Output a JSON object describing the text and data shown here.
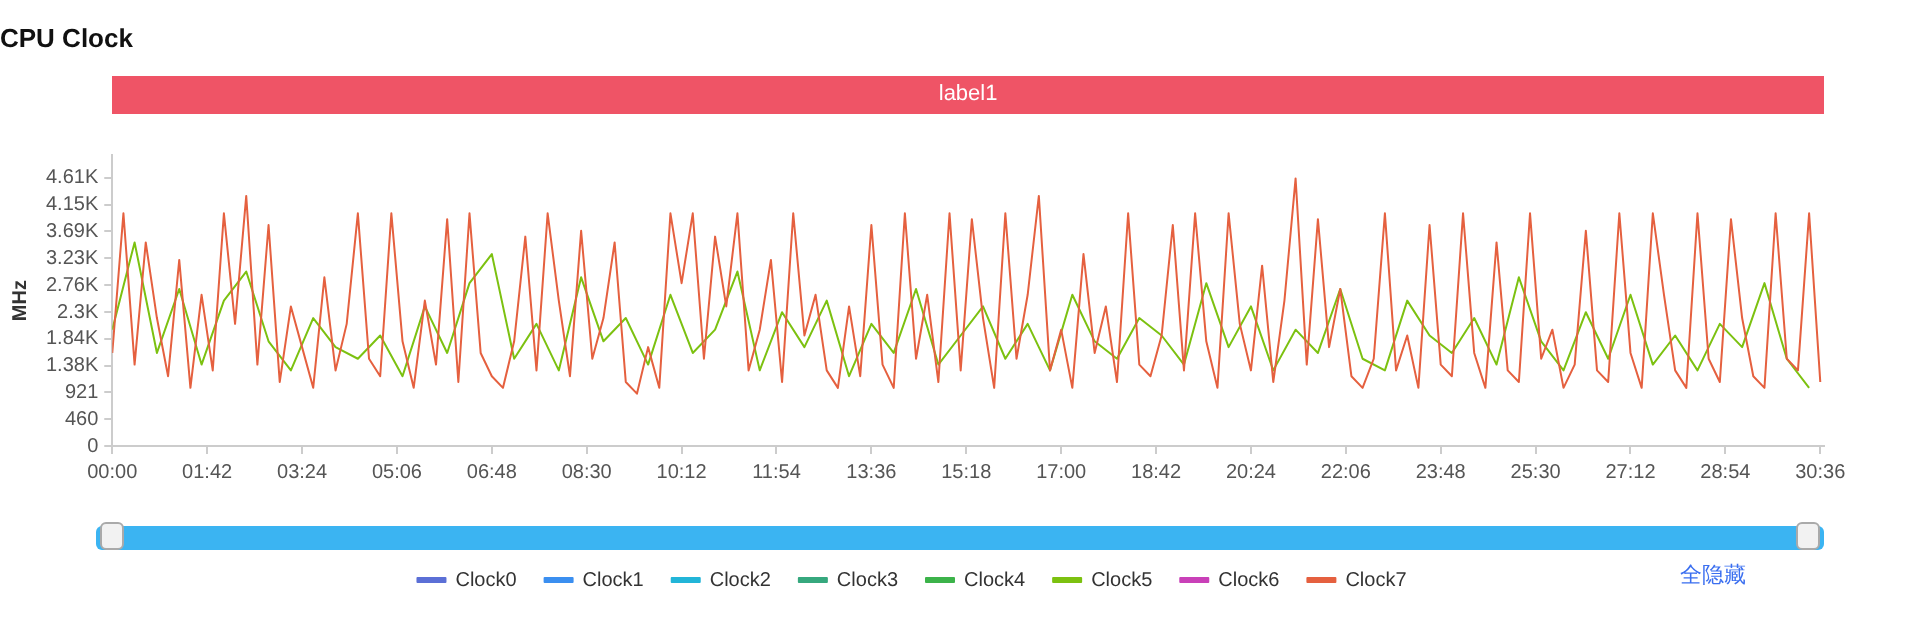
{
  "chart_data": {
    "type": "line",
    "title": "CPU Clock",
    "ylabel": "MHz",
    "legend": "bottom",
    "grid": false,
    "marker": "none",
    "line_style": "solid",
    "xlim": [
      0,
      1840
    ],
    "xticks": [
      {
        "value": 0,
        "label": "00:00"
      },
      {
        "value": 102,
        "label": "01:42"
      },
      {
        "value": 204,
        "label": "03:24"
      },
      {
        "value": 306,
        "label": "05:06"
      },
      {
        "value": 408,
        "label": "06:48"
      },
      {
        "value": 510,
        "label": "08:30"
      },
      {
        "value": 612,
        "label": "10:12"
      },
      {
        "value": 714,
        "label": "11:54"
      },
      {
        "value": 816,
        "label": "13:36"
      },
      {
        "value": 918,
        "label": "15:18"
      },
      {
        "value": 1020,
        "label": "17:00"
      },
      {
        "value": 1122,
        "label": "18:42"
      },
      {
        "value": 1224,
        "label": "20:24"
      },
      {
        "value": 1326,
        "label": "22:06"
      },
      {
        "value": 1428,
        "label": "23:48"
      },
      {
        "value": 1530,
        "label": "25:30"
      },
      {
        "value": 1632,
        "label": "27:12"
      },
      {
        "value": 1734,
        "label": "28:54"
      },
      {
        "value": 1836,
        "label": "30:36"
      }
    ],
    "ylim": [
      0,
      5000
    ],
    "yticks": [
      0,
      460,
      921,
      {
        "value": 1380,
        "label": "1.38K"
      },
      {
        "value": 1840,
        "label": "1.84K"
      },
      {
        "value": 2300,
        "label": "2.3K"
      },
      {
        "value": 2760,
        "label": "2.76K"
      },
      {
        "value": 3230,
        "label": "3.23K"
      },
      {
        "value": 3690,
        "label": "3.69K"
      },
      {
        "value": 4150,
        "label": "4.15K"
      },
      {
        "value": 4610,
        "label": "4.61K"
      }
    ],
    "annotations": [
      "label1",
      "全隐藏"
    ],
    "series": [
      {
        "name": "Clock0",
        "color": "#5b6fd6",
        "values": [
          null
        ]
      },
      {
        "name": "Clock1",
        "color": "#3b8ff0",
        "values": [
          null
        ]
      },
      {
        "name": "Clock2",
        "color": "#22b5d8",
        "values": [
          null
        ]
      },
      {
        "name": "Clock3",
        "color": "#36a87e",
        "values": [
          null
        ]
      },
      {
        "name": "Clock4",
        "color": "#3cb34a",
        "values": [
          null
        ]
      },
      {
        "name": "Clock5",
        "color": "#7cc110",
        "x": [
          0,
          24,
          48,
          72,
          96,
          120,
          144,
          168,
          192,
          216,
          240,
          264,
          288,
          312,
          336,
          360,
          384,
          408,
          432,
          456,
          480,
          504,
          528,
          552,
          576,
          600,
          624,
          648,
          672,
          696,
          720,
          744,
          768,
          792,
          816,
          840,
          864,
          888,
          912,
          936,
          960,
          984,
          1008,
          1032,
          1056,
          1080,
          1104,
          1128,
          1152,
          1176,
          1200,
          1224,
          1248,
          1272,
          1296,
          1320,
          1344,
          1368,
          1392,
          1416,
          1440,
          1464,
          1488,
          1512,
          1536,
          1560,
          1584,
          1608,
          1632,
          1656,
          1680,
          1704,
          1728,
          1752,
          1776,
          1800,
          1824
        ],
        "values": [
          2000,
          3500,
          1600,
          2700,
          1400,
          2500,
          3000,
          1800,
          1300,
          2200,
          1700,
          1500,
          1900,
          1200,
          2400,
          1600,
          2800,
          3300,
          1500,
          2100,
          1300,
          2900,
          1800,
          2200,
          1400,
          2600,
          1600,
          2000,
          3000,
          1300,
          2300,
          1700,
          2500,
          1200,
          2100,
          1600,
          2700,
          1400,
          1900,
          2400,
          1500,
          2100,
          1300,
          2600,
          1800,
          1500,
          2200,
          1900,
          1400,
          2800,
          1700,
          2400,
          1300,
          2000,
          1600,
          2700,
          1500,
          1300,
          2500,
          1900,
          1600,
          2200,
          1400,
          2900,
          1800,
          1300,
          2300,
          1500,
          2600,
          1400,
          1900,
          1300,
          2100,
          1700,
          2800,
          1500,
          1000
        ]
      },
      {
        "name": "Clock6",
        "color": "#c940b8",
        "values": [
          null
        ]
      },
      {
        "name": "Clock7",
        "color": "#e5603f",
        "x": [
          0,
          12,
          24,
          36,
          48,
          60,
          72,
          84,
          96,
          108,
          120,
          132,
          144,
          156,
          168,
          180,
          192,
          204,
          216,
          228,
          240,
          252,
          264,
          276,
          288,
          300,
          312,
          324,
          336,
          348,
          360,
          372,
          384,
          396,
          408,
          420,
          432,
          444,
          456,
          468,
          480,
          492,
          504,
          516,
          528,
          540,
          552,
          564,
          576,
          588,
          600,
          612,
          624,
          636,
          648,
          660,
          672,
          684,
          696,
          708,
          720,
          732,
          744,
          756,
          768,
          780,
          792,
          804,
          816,
          828,
          840,
          852,
          864,
          876,
          888,
          900,
          912,
          924,
          936,
          948,
          960,
          972,
          984,
          996,
          1008,
          1020,
          1032,
          1044,
          1056,
          1068,
          1080,
          1092,
          1104,
          1116,
          1128,
          1140,
          1152,
          1164,
          1176,
          1188,
          1200,
          1212,
          1224,
          1236,
          1248,
          1260,
          1272,
          1284,
          1296,
          1308,
          1320,
          1332,
          1344,
          1356,
          1368,
          1380,
          1392,
          1404,
          1416,
          1428,
          1440,
          1452,
          1464,
          1476,
          1488,
          1500,
          1512,
          1524,
          1536,
          1548,
          1560,
          1572,
          1584,
          1596,
          1608,
          1620,
          1632,
          1644,
          1656,
          1668,
          1680,
          1692,
          1704,
          1716,
          1728,
          1740,
          1752,
          1764,
          1776,
          1788,
          1800,
          1812,
          1824,
          1836
        ],
        "values": [
          1600,
          4000,
          1400,
          3500,
          2200,
          1200,
          3200,
          1000,
          2600,
          1300,
          4000,
          2100,
          4300,
          1400,
          3800,
          1100,
          2400,
          1700,
          1000,
          2900,
          1300,
          2100,
          4000,
          1500,
          1200,
          4000,
          1800,
          1000,
          2500,
          1400,
          3900,
          1100,
          4000,
          1600,
          1200,
          1000,
          1800,
          3600,
          1300,
          4000,
          2500,
          1200,
          3700,
          1500,
          2200,
          3500,
          1100,
          900,
          1700,
          1000,
          4000,
          2800,
          4000,
          1500,
          3600,
          2400,
          4000,
          1300,
          2000,
          3200,
          1100,
          4000,
          1900,
          2600,
          1300,
          1000,
          2400,
          1200,
          3800,
          1400,
          1000,
          4000,
          1500,
          2600,
          1100,
          4000,
          1300,
          3900,
          2200,
          1000,
          4000,
          1500,
          2600,
          4300,
          1300,
          2000,
          1000,
          3300,
          1600,
          2400,
          1100,
          4000,
          1400,
          1200,
          1900,
          3800,
          1300,
          4000,
          1800,
          1000,
          4000,
          2100,
          1300,
          3100,
          1100,
          2500,
          4600,
          1400,
          3900,
          1700,
          2700,
          1200,
          1000,
          1500,
          4000,
          1300,
          1900,
          1000,
          3800,
          1400,
          1200,
          4000,
          1600,
          1000,
          3500,
          1300,
          1100,
          4000,
          1500,
          2000,
          1000,
          1400,
          3700,
          1300,
          1100,
          4000,
          1600,
          1000,
          4000,
          2600,
          1300,
          1000,
          4000,
          1500,
          1100,
          3900,
          2200,
          1200,
          1000,
          4000,
          1500,
          1300,
          4000,
          1100
        ]
      }
    ]
  }
}
